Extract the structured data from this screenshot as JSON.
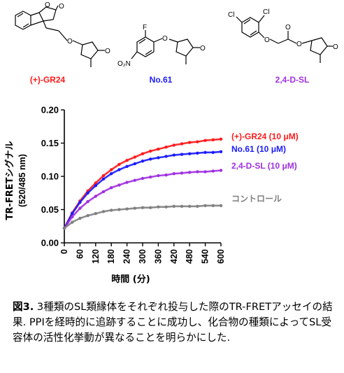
{
  "compounds": [
    {
      "label": "(+)-GR24",
      "color": "#ff1a1a"
    },
    {
      "label": "No.61",
      "color": "#1a1aff"
    },
    {
      "label": "2,4-D-SL",
      "color": "#a030e0"
    }
  ],
  "atoms": {
    "o": "O",
    "f": "F",
    "cl": "Cl",
    "o2n": "O₂N"
  },
  "caption": {
    "figure_label": "図3.",
    "text": " 3種類のSL類縁体をそれぞれ投与した際のTR-FRETアッセイの結果. PPIを経時的に追跡することに成功し、化合物の種類によってSL受容体の活性化挙動が異なることを明らかにした."
  },
  "chart_data": {
    "type": "scatter",
    "title": "",
    "xlabel": "時間 (分)",
    "ylabel": "TR-FRETシグナル",
    "ylabel2": "(520/485 nm)",
    "xlim": [
      0,
      600
    ],
    "ylim": [
      0,
      0.2
    ],
    "xticks": [
      0,
      60,
      120,
      180,
      240,
      300,
      360,
      420,
      480,
      540,
      600
    ],
    "yticks": [
      "0.00",
      "0.05",
      "0.10",
      "0.15",
      "0.20"
    ],
    "series": [
      {
        "name": "(+)-GR24 (10 μM)",
        "color": "#ff1a1a",
        "x": [
          0,
          30,
          60,
          90,
          120,
          150,
          180,
          210,
          240,
          270,
          300,
          330,
          360,
          390,
          420,
          450,
          480,
          510,
          540,
          570,
          600
        ],
        "y": [
          0.022,
          0.045,
          0.063,
          0.078,
          0.09,
          0.101,
          0.11,
          0.118,
          0.124,
          0.129,
          0.134,
          0.138,
          0.141,
          0.144,
          0.147,
          0.149,
          0.151,
          0.152,
          0.154,
          0.155,
          0.156
        ]
      },
      {
        "name": "No.61 (10 μM)",
        "color": "#1a1aff",
        "x": [
          0,
          30,
          60,
          90,
          120,
          150,
          180,
          210,
          240,
          270,
          300,
          330,
          360,
          390,
          420,
          450,
          480,
          510,
          540,
          570,
          600
        ],
        "y": [
          0.022,
          0.044,
          0.061,
          0.075,
          0.086,
          0.096,
          0.104,
          0.11,
          0.115,
          0.119,
          0.123,
          0.126,
          0.128,
          0.13,
          0.132,
          0.133,
          0.134,
          0.135,
          0.136,
          0.136,
          0.137
        ]
      },
      {
        "name": "2,4-D-SL (10 μM)",
        "color": "#a030e0",
        "x": [
          0,
          30,
          60,
          90,
          120,
          150,
          180,
          210,
          240,
          270,
          300,
          330,
          360,
          390,
          420,
          450,
          480,
          510,
          540,
          570,
          600
        ],
        "y": [
          0.022,
          0.039,
          0.052,
          0.062,
          0.07,
          0.077,
          0.083,
          0.087,
          0.091,
          0.094,
          0.097,
          0.099,
          0.101,
          0.102,
          0.104,
          0.105,
          0.106,
          0.107,
          0.107,
          0.108,
          0.109
        ]
      },
      {
        "name": "コントロール",
        "color": "#808080",
        "x": [
          0,
          30,
          60,
          90,
          120,
          150,
          180,
          210,
          240,
          270,
          300,
          330,
          360,
          390,
          420,
          450,
          480,
          510,
          540,
          570,
          600
        ],
        "y": [
          0.022,
          0.031,
          0.037,
          0.041,
          0.044,
          0.047,
          0.049,
          0.05,
          0.051,
          0.052,
          0.053,
          0.053,
          0.054,
          0.054,
          0.055,
          0.055,
          0.055,
          0.055,
          0.056,
          0.056,
          0.056
        ]
      }
    ],
    "legend_placement": "right"
  }
}
